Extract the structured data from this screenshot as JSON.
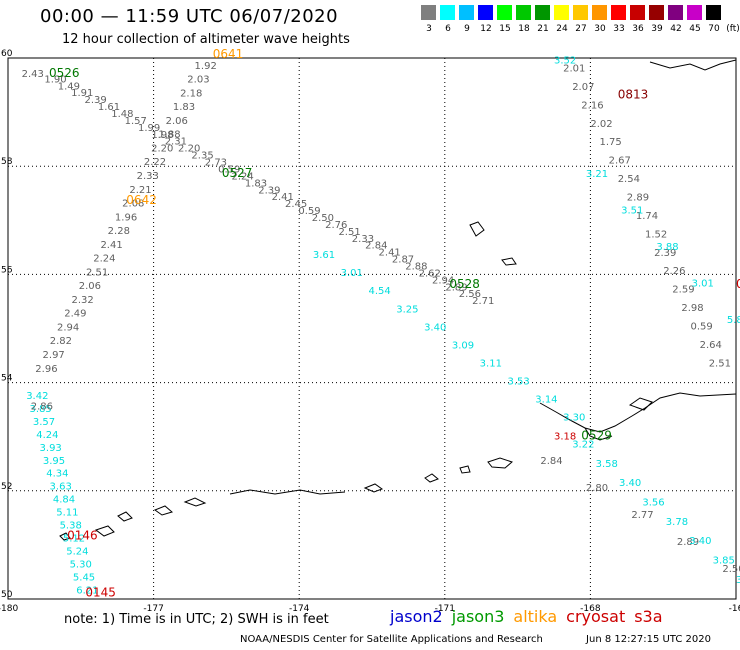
{
  "header": {
    "title": "00:00 — 11:59 UTC 06/07/2020",
    "subtitle": "12 hour collection of altimeter wave heights"
  },
  "scale": {
    "colors": [
      "#7f7f7f",
      "#00ffff",
      "#00bfff",
      "#0000ff",
      "#00ff00",
      "#00c800",
      "#009600",
      "#ffff00",
      "#ffc800",
      "#ff9600",
      "#ff0000",
      "#c80000",
      "#960000",
      "#800080",
      "#c800c8",
      "#000000"
    ],
    "labels": [
      "3",
      "6",
      "9",
      "12",
      "15",
      "18",
      "21",
      "24",
      "27",
      "30",
      "33",
      "36",
      "39",
      "42",
      "45",
      "70",
      "(ft)"
    ]
  },
  "map": {
    "lon_range": [
      -180,
      -164
    ],
    "lat_range": [
      50,
      60
    ],
    "lon_ticks": [
      "-180",
      "-177",
      "-174",
      "-171",
      "-168",
      "-16"
    ],
    "lat_ticks": [
      "60",
      "58",
      "56",
      "54",
      "52",
      "50"
    ]
  },
  "tracks": [
    {
      "name": "jason3_0526",
      "color": "#606060",
      "lon0": -179.2,
      "lat0": 59.55,
      "lon1": -169.8,
      "lat1": 55.45,
      "values": [
        "1.90",
        "1.49",
        "1.91",
        "2.39",
        "1.61",
        "1.48",
        "1.57",
        "1.99",
        "1.98",
        "2.31",
        "2.20",
        "2.35",
        "2.73",
        "0.59",
        "2.24",
        "1.83",
        "2.39",
        "2.41",
        "2.45",
        "0.59",
        "2.50",
        "2.76",
        "2.51",
        "2.33",
        "2.84",
        "2.41",
        "2.87",
        "2.88",
        "2.62",
        "2.94",
        "2.89",
        "2.56",
        "2.71"
      ]
    },
    {
      "name": "jason3_0527_cyan",
      "color": "#00dddd",
      "lon0": -173.3,
      "lat0": 56.3,
      "lon1": -167.8,
      "lat1": 53.3,
      "values": [
        "3.61",
        "3.01",
        "4.54",
        "3.25",
        "3.40",
        "3.09",
        "3.11",
        "3.53",
        "3.14",
        "3.30"
      ]
    },
    {
      "name": "jason3_0529",
      "color": "#606060",
      "lon0": -168.3,
      "lat0": 52.5,
      "lon1": -164.3,
      "lat1": 50.5,
      "values": [
        "2.84",
        "2.80",
        "2.77",
        "2.89",
        "2.50"
      ]
    },
    {
      "name": "jason3_0529_cyan",
      "color": "#00dddd",
      "lon0": -167.6,
      "lat0": 52.8,
      "lon1": -164.0,
      "lat1": 50.3,
      "values": [
        "3.22",
        "3.58",
        "3.40",
        "3.56",
        "3.78",
        "3.40",
        "3.85",
        "3.19"
      ]
    },
    {
      "name": "altika_0641",
      "color": "#606060",
      "lon0": -175.9,
      "lat0": 59.8,
      "lon1": -179.4,
      "lat1": 54.2,
      "values": [
        "1.92",
        "2.03",
        "2.18",
        "1.83",
        "2.06",
        "1.88",
        "2.20",
        "2.22",
        "2.33",
        "2.21",
        "2.08",
        "1.96",
        "2.28",
        "2.41",
        "2.24",
        "2.51",
        "2.06",
        "2.32",
        "2.49",
        "2.94",
        "2.82",
        "2.97",
        "2.96"
      ]
    },
    {
      "name": "cryosat_0813",
      "color": "#606060",
      "lon0": -167.8,
      "lat0": 59.75,
      "lon1": -164.6,
      "lat1": 54.3,
      "values": [
        "2.01",
        "2.07",
        "2.16",
        "2.02",
        "1.75",
        "2.67",
        "2.54",
        "2.89",
        "1.74",
        "1.52",
        "2.39",
        "2.26",
        "2.59",
        "2.98",
        "0.59",
        "2.64",
        "2.51"
      ]
    },
    {
      "name": "cryosat_0813_cyan",
      "color": "#00dddd",
      "lon0": -167.3,
      "lat0": 57.8,
      "lon1": -164.2,
      "lat1": 55.1,
      "values": [
        "3.21",
        "3.51",
        "3.88",
        "3.01",
        "5.81"
      ]
    },
    {
      "name": "s3a_0145",
      "color": "#00dddd",
      "lon0": -179.6,
      "lat0": 53.7,
      "lon1": -178.5,
      "lat1": 50.1,
      "values": [
        "3.42",
        "3.85",
        "3.57",
        "4.24",
        "3.93",
        "3.95",
        "4.34",
        "3.63",
        "4.84",
        "5.11",
        "5.38",
        "5.12",
        "5.24",
        "5.30",
        "5.45",
        "6.21"
      ]
    },
    {
      "name": "s3a_0145_gray",
      "color": "#606060",
      "lon0": -179.5,
      "lat0": 53.5,
      "lon1": -179.5,
      "lat1": 53.5,
      "values": [
        "2.86"
      ]
    }
  ],
  "extra_values": [
    {
      "text": "2.43",
      "color": "#606060",
      "lon": -179.7,
      "lat": 59.65
    },
    {
      "text": "3.52",
      "color": "#00dddd",
      "lon": -168.0,
      "lat": 59.9
    },
    {
      "text": "3.18",
      "color": "#cc0000",
      "lon": -168.0,
      "lat": 52.95
    }
  ],
  "pass_labels": [
    {
      "text": "0526",
      "color": "#007700",
      "lon": -179.1,
      "lat": 59.65
    },
    {
      "text": "0641",
      "color": "#ff9900",
      "lon": -175.5,
      "lat": 60.0
    },
    {
      "text": "0642",
      "color": "#ff9900",
      "lon": -177.4,
      "lat": 57.3
    },
    {
      "text": "0527",
      "color": "#007700",
      "lon": -175.3,
      "lat": 57.8
    },
    {
      "text": "0528",
      "color": "#007700",
      "lon": -170.3,
      "lat": 55.75
    },
    {
      "text": "0529",
      "color": "#007700",
      "lon": -167.4,
      "lat": 52.95
    },
    {
      "text": "0813",
      "color": "#880000",
      "lon": -166.6,
      "lat": 59.25
    },
    {
      "text": "0",
      "color": "#cc0000",
      "lon": -164.0,
      "lat": 55.75
    },
    {
      "text": "0146",
      "color": "#cc0000",
      "lon": -178.7,
      "lat": 51.1
    },
    {
      "text": "0145",
      "color": "#cc0000",
      "lon": -178.3,
      "lat": 50.05
    }
  ],
  "footer": {
    "note": "note: 1) Time is in UTC; 2) SWH is in feet",
    "satellites": [
      {
        "name": "jason2",
        "color": "#0000cc"
      },
      {
        "name": "jason3",
        "color": "#009900"
      },
      {
        "name": "altika",
        "color": "#ff9900"
      },
      {
        "name": "cryosat",
        "color": "#cc0000"
      },
      {
        "name": "s3a",
        "color": "#cc0000"
      }
    ],
    "credit": "NOAA/NESDIS Center for Satellite Applications and Research",
    "timestamp": "Jun 8 12:27:15 UTC 2020"
  }
}
